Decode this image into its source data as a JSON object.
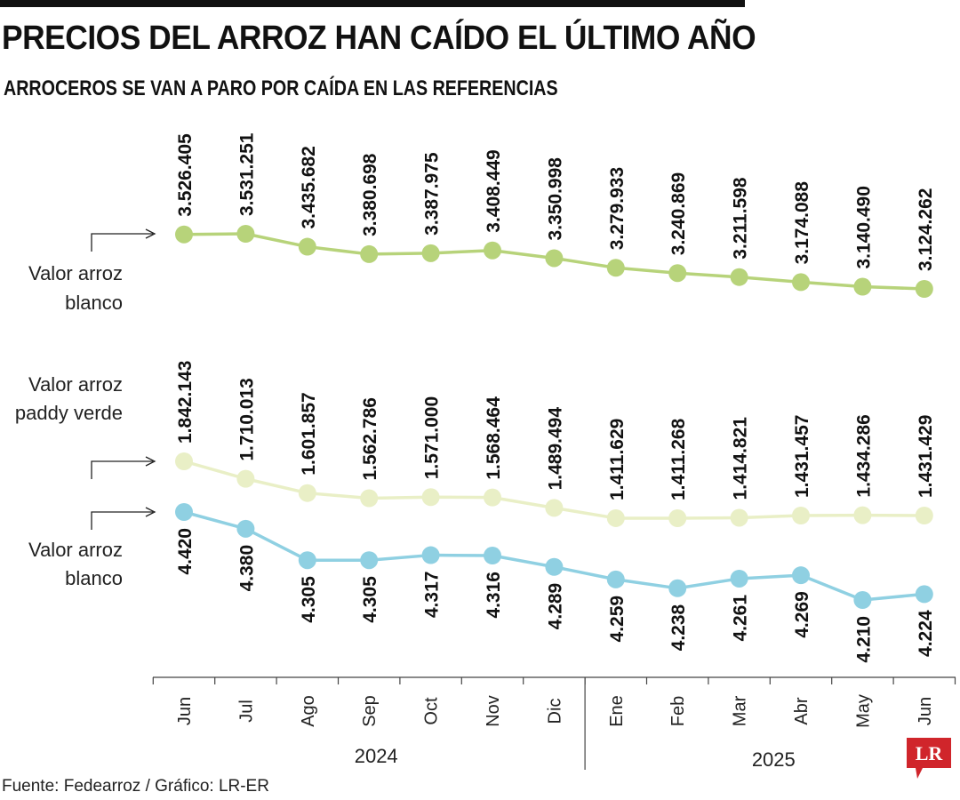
{
  "title": "PRECIOS DEL ARROZ HAN CAÍDO EL ÚLTIMO AÑO",
  "subtitle": "ARROCEROS SE VAN A PARO POR CAÍDA EN LAS REFERENCIAS",
  "source": "Fuente: Fedearroz / Gráfico: LR-ER",
  "logo_text": "LR",
  "colors": {
    "blanco_top": "#b7d37a",
    "paddy": "#e9efc6",
    "blanco_bottom": "#8fd0e2",
    "logo": "#d0252b",
    "axis": "#444444"
  },
  "chart_data": {
    "type": "line",
    "x": [
      "Jun",
      "Jul",
      "Ago",
      "Sep",
      "Oct",
      "Nov",
      "Dic",
      "Ene",
      "Feb",
      "Mar",
      "Abr",
      "May",
      "Jun"
    ],
    "year_groups": [
      {
        "label": "2024",
        "months": [
          "Jun",
          "Jul",
          "Ago",
          "Sep",
          "Oct",
          "Nov",
          "Dic"
        ]
      },
      {
        "label": "2025",
        "months": [
          "Ene",
          "Feb",
          "Mar",
          "Abr",
          "May",
          "Jun"
        ]
      }
    ],
    "series": [
      {
        "name": "Valor arroz blanco",
        "label_lines": [
          "Valor arroz",
          "blanco"
        ],
        "values": [
          3526405,
          3531251,
          3435682,
          3380698,
          3387975,
          3408449,
          3350998,
          3279933,
          3240869,
          3211598,
          3174088,
          3140490,
          3124262
        ],
        "labels": [
          "3.526.405",
          "3.531.251",
          "3.435.682",
          "3.380.698",
          "3.387.975",
          "3.408.449",
          "3.350.998",
          "3.279.933",
          "3.240.869",
          "3.211.598",
          "3.174.088",
          "3.140.490",
          "3.124.262"
        ]
      },
      {
        "name": "Valor arroz paddy verde",
        "label_lines": [
          "Valor arroz",
          "paddy verde"
        ],
        "values": [
          1842143,
          1710013,
          1601857,
          1562786,
          1571000,
          1568464,
          1489494,
          1411629,
          1411268,
          1414821,
          1431457,
          1434286,
          1431429
        ],
        "labels": [
          "1.842.143",
          "1.710.013",
          "1.601.857",
          "1.562.786",
          "1.571.000",
          "1.568.464",
          "1.489.494",
          "1.411.629",
          "1.411.268",
          "1.414.821",
          "1.431.457",
          "1.434.286",
          "1.431.429"
        ]
      },
      {
        "name": "Valor arroz blanco",
        "label_lines": [
          "Valor arroz",
          "blanco"
        ],
        "values": [
          4420,
          4380,
          4305,
          4305,
          4317,
          4316,
          4289,
          4259,
          4238,
          4261,
          4269,
          4210,
          4224
        ],
        "labels": [
          "4.420",
          "4.380",
          "4.305",
          "4.305",
          "4.317",
          "4.316",
          "4.289",
          "4.259",
          "4.238",
          "4.261",
          "4.269",
          "4.210",
          "4.224"
        ]
      }
    ]
  }
}
